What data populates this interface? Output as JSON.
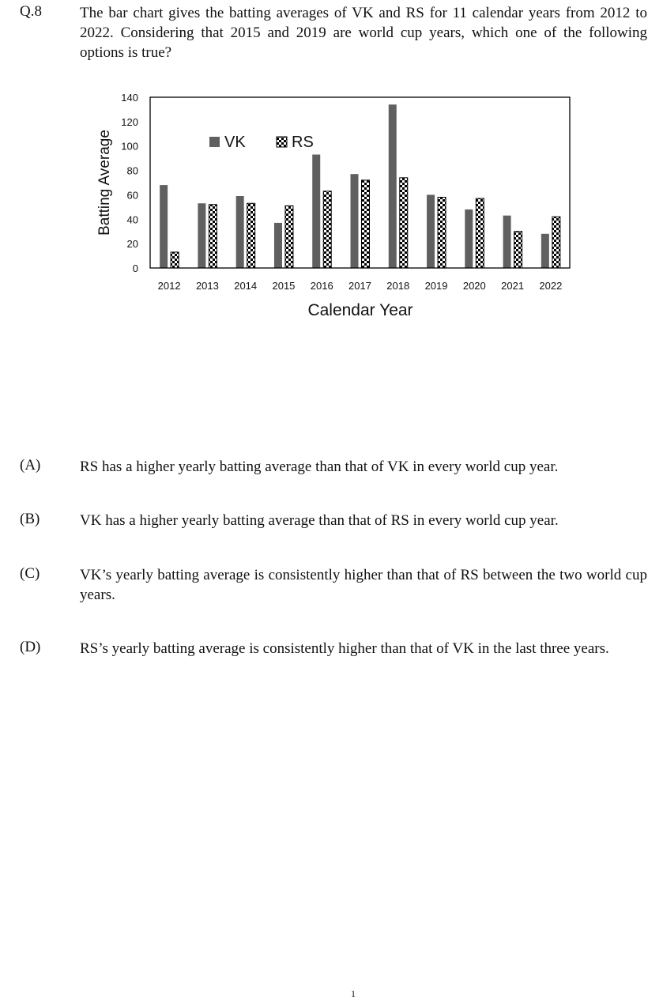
{
  "question": {
    "number": "Q.8",
    "text": "The bar chart gives the batting averages of VK and RS for 11 calendar years from 2012 to 2022. Considering that 2015 and 2019 are world cup years, which one of the following options is true?"
  },
  "chart_data": {
    "type": "bar",
    "categories": [
      "2012",
      "2013",
      "2014",
      "2015",
      "2016",
      "2017",
      "2018",
      "2019",
      "2020",
      "2021",
      "2022"
    ],
    "series": [
      {
        "name": "VK",
        "values": [
          68,
          53,
          59,
          37,
          93,
          77,
          134,
          60,
          48,
          43,
          28
        ],
        "color": "#606060",
        "pattern": "solid"
      },
      {
        "name": "RS",
        "values": [
          13,
          52,
          53,
          51,
          63,
          72,
          74,
          58,
          57,
          30,
          42
        ],
        "color": "#000000",
        "pattern": "checkerboard"
      }
    ],
    "title": "",
    "xlabel": "Calendar Year",
    "ylabel": "Batting Average",
    "ylim": [
      0,
      140
    ],
    "yticks": [
      0,
      20,
      40,
      60,
      80,
      100,
      120,
      140
    ],
    "grid": false,
    "legend": "top-left inside plot"
  },
  "options": [
    {
      "label": "(A)",
      "text": "RS has a higher yearly batting average than that of VK in every world cup year."
    },
    {
      "label": "(B)",
      "text": "VK has a higher yearly batting average than that of RS in every world cup year."
    },
    {
      "label": "(C)",
      "text": "VK’s yearly batting average is consistently higher than that of RS between the two world cup years."
    },
    {
      "label": "(D)",
      "text": "RS’s yearly batting average is consistently higher than that of VK in the last three years."
    }
  ],
  "footer": {
    "page_mark": "1"
  }
}
